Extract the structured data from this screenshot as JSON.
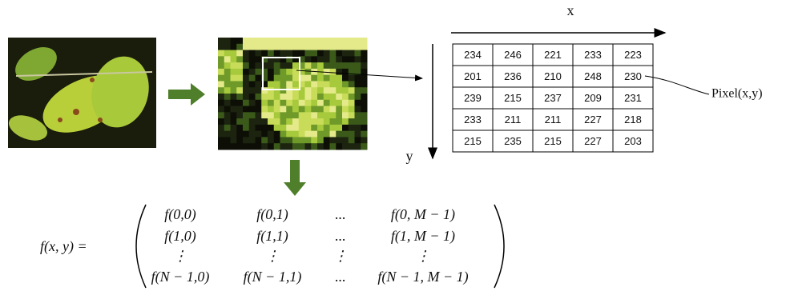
{
  "axis_labels": {
    "x": "x",
    "y": "y"
  },
  "pixel_label": "Pixel(x,y)",
  "table": {
    "rows": [
      [
        234,
        246,
        221,
        233,
        223
      ],
      [
        201,
        236,
        210,
        248,
        230
      ],
      [
        239,
        215,
        237,
        209,
        231
      ],
      [
        233,
        211,
        211,
        227,
        218
      ],
      [
        215,
        235,
        215,
        227,
        203
      ]
    ]
  },
  "formula": {
    "lhs": "f(x, y) =",
    "matrix": [
      [
        "f(0,0)",
        "f(0,1)",
        "...",
        "f(0, M − 1)"
      ],
      [
        "f(1,0)",
        "f(1,1)",
        "...",
        "f(1, M − 1)"
      ],
      [
        "⋮",
        "⋮",
        "⋮",
        "⋮"
      ],
      [
        "f(N − 1,0)",
        "f(N − 1,1)",
        "...",
        "f(N − 1, M − 1)"
      ]
    ]
  }
}
